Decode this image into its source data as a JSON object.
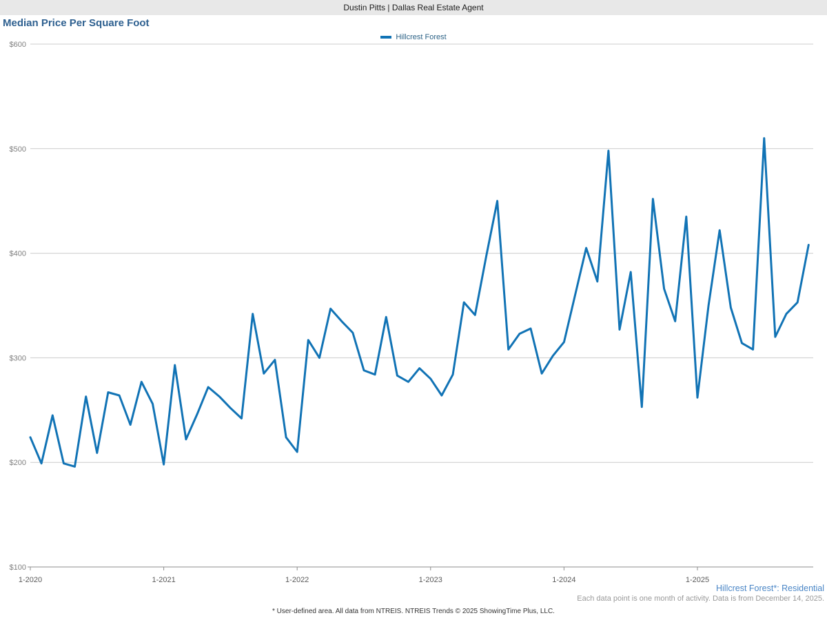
{
  "header": {
    "title": "Dustin Pitts | Dallas Real Estate Agent"
  },
  "notes": {
    "series_note": "Hillcrest Forest*: Residential",
    "data_note": "Each data point is one month of activity. Data is from December 14, 2025.",
    "footer_note": "* User-defined area. All data from NTREIS. NTREIS Trends © 2025 ShowingTime Plus, LLC."
  },
  "colors": {
    "line": "#1173b5",
    "title_text": "#2e6090",
    "legend_text": "#2c6286",
    "series_note_text": "#4a86c6",
    "gridline": "#cccccc",
    "axis_line": "#8c8c8c",
    "y_label_text": "#808080",
    "x_label_text": "#595959",
    "header_bg": "#e8e8e8"
  },
  "chart_data": {
    "type": "line",
    "title": "Median Price Per Square Foot",
    "x_start": "1-2020",
    "x_end": "11-2025",
    "x_unit": "month",
    "x_tick_labels": [
      "1-2020",
      "1-2021",
      "1-2022",
      "1-2023",
      "1-2024",
      "1-2025"
    ],
    "x_tick_interval_months": 12,
    "ylim": [
      100,
      600
    ],
    "y_tick_step": 100,
    "y_tick_prefix": "$",
    "grid": "horizontal",
    "legend_position": "top-center",
    "series": [
      {
        "name": "Hillcrest Forest",
        "color": "#1173b5",
        "values": [
          224,
          199,
          245,
          199,
          196,
          263,
          209,
          267,
          264,
          236,
          277,
          256,
          198,
          293,
          222,
          246,
          272,
          263,
          252,
          242,
          342,
          285,
          298,
          224,
          210,
          317,
          300,
          347,
          335,
          324,
          288,
          284,
          339,
          283,
          277,
          290,
          280,
          264,
          284,
          353,
          341,
          397,
          450,
          308,
          323,
          328,
          285,
          302,
          315,
          360,
          405,
          373,
          498,
          327,
          382,
          253,
          452,
          366,
          335,
          435,
          262,
          350,
          422,
          348,
          314,
          308,
          510,
          320,
          342,
          353,
          408
        ]
      }
    ]
  }
}
